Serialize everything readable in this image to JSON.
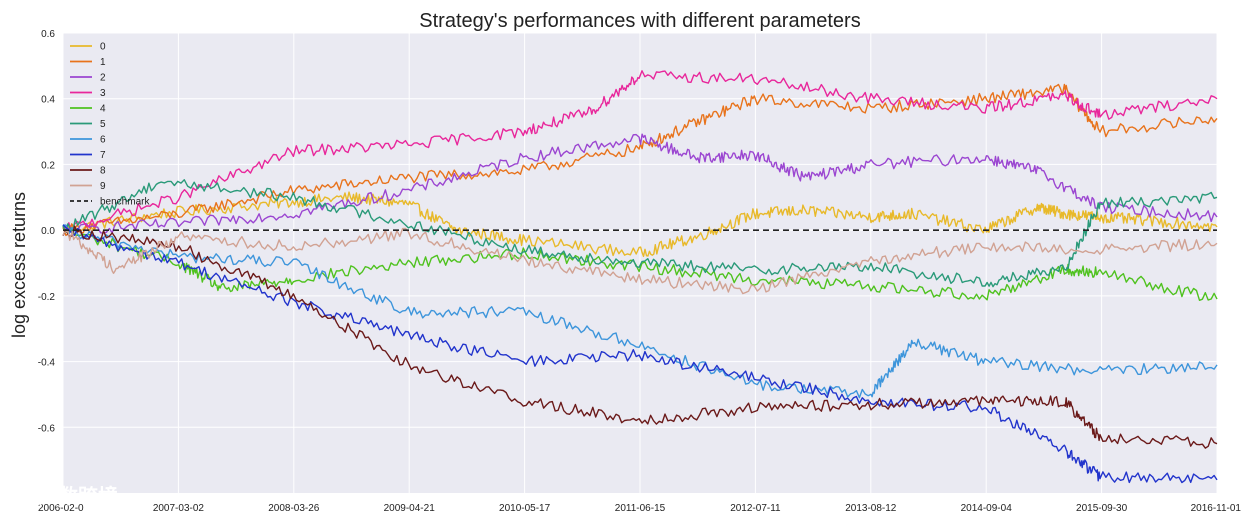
{
  "watermark": "大数跨境",
  "chart_data": {
    "type": "line",
    "title": "Strategy's performances with different parameters",
    "xlabel": "",
    "ylabel": "log excess returns",
    "ylim": [
      -0.8,
      0.6
    ],
    "yticks": [
      -0.6,
      -0.4,
      -0.2,
      0.0,
      0.2,
      0.4,
      0.6
    ],
    "ytick_labels": [
      "-0.6",
      "-0.4",
      "-0.2",
      "0.0",
      "0.2",
      "0.4",
      "0.6"
    ],
    "x_start": "2006-02-01",
    "x_end": "2016-11-01",
    "xtick_labels": [
      "2006-02-0",
      "2007-03-02",
      "2008-03-26",
      "2009-04-21",
      "2010-05-17",
      "2011-06-15",
      "2012-07-11",
      "2013-08-12",
      "2014-09-04",
      "2015-09-30",
      "2016-11-01"
    ],
    "grid": true,
    "legend_position": "top-left",
    "background": "#eaeaf2",
    "series": [
      {
        "name": "0",
        "color": "#e8b92a",
        "x": [
          "2006-02-01",
          "2007-01-01",
          "2008-01-01",
          "2008-10-01",
          "2009-04-21",
          "2009-10-01",
          "2010-05-17",
          "2011-06-15",
          "2012-01-01",
          "2012-07-11",
          "2013-01-01",
          "2013-08-12",
          "2014-01-01",
          "2014-09-04",
          "2015-03-01",
          "2015-06-01",
          "2015-09-30",
          "2016-03-01",
          "2016-11-01"
        ],
        "y": [
          0.0,
          0.05,
          0.08,
          0.1,
          0.08,
          0.0,
          -0.03,
          -0.07,
          -0.02,
          0.05,
          0.06,
          0.04,
          0.05,
          0.0,
          0.07,
          0.05,
          0.04,
          0.03,
          0.01
        ]
      },
      {
        "name": "1",
        "color": "#e8731c",
        "x": [
          "2006-02-01",
          "2007-03-02",
          "2008-03-26",
          "2009-04-21",
          "2010-05-17",
          "2011-06-15",
          "2012-01-01",
          "2012-07-11",
          "2013-08-12",
          "2014-09-04",
          "2015-06-01",
          "2015-09-30",
          "2016-11-01"
        ],
        "y": [
          0.0,
          0.05,
          0.12,
          0.16,
          0.18,
          0.25,
          0.33,
          0.4,
          0.37,
          0.4,
          0.43,
          0.3,
          0.34
        ]
      },
      {
        "name": "2",
        "color": "#9b46d1",
        "x": [
          "2006-02-01",
          "2007-03-02",
          "2008-03-26",
          "2009-04-21",
          "2010-05-17",
          "2011-06-15",
          "2012-01-01",
          "2012-07-11",
          "2013-01-01",
          "2013-08-12",
          "2014-09-04",
          "2015-03-01",
          "2015-09-30",
          "2016-11-01"
        ],
        "y": [
          0.0,
          0.02,
          0.05,
          0.12,
          0.22,
          0.28,
          0.22,
          0.23,
          0.16,
          0.2,
          0.22,
          0.18,
          0.07,
          0.04
        ]
      },
      {
        "name": "3",
        "color": "#e8279b",
        "x": [
          "2006-02-01",
          "2007-03-02",
          "2008-03-26",
          "2009-04-21",
          "2010-05-17",
          "2011-01-01",
          "2011-06-15",
          "2012-07-11",
          "2013-08-12",
          "2014-09-04",
          "2015-06-01",
          "2015-09-30",
          "2016-11-01"
        ],
        "y": [
          0.0,
          0.1,
          0.24,
          0.26,
          0.3,
          0.36,
          0.47,
          0.46,
          0.4,
          0.37,
          0.41,
          0.35,
          0.4
        ]
      },
      {
        "name": "4",
        "color": "#4fc21f",
        "x": [
          "2006-02-01",
          "2007-03-02",
          "2007-08-01",
          "2008-03-26",
          "2009-04-21",
          "2010-05-17",
          "2011-06-15",
          "2012-07-11",
          "2013-08-12",
          "2014-09-04",
          "2015-06-01",
          "2015-09-30",
          "2016-11-01"
        ],
        "y": [
          0.0,
          -0.1,
          -0.18,
          -0.15,
          -0.1,
          -0.07,
          -0.11,
          -0.15,
          -0.17,
          -0.2,
          -0.12,
          -0.13,
          -0.21
        ]
      },
      {
        "name": "5",
        "color": "#2a9a79",
        "x": [
          "2006-02-01",
          "2007-01-01",
          "2008-03-26",
          "2009-04-21",
          "2010-05-17",
          "2011-06-15",
          "2012-07-11",
          "2013-08-12",
          "2014-09-04",
          "2015-06-01",
          "2015-09-30",
          "2016-11-01"
        ],
        "y": [
          0.0,
          0.15,
          0.1,
          0.02,
          -0.06,
          -0.1,
          -0.12,
          -0.11,
          -0.16,
          -0.12,
          0.08,
          0.1
        ]
      },
      {
        "name": "6",
        "color": "#3d95db",
        "x": [
          "2006-02-01",
          "2007-03-02",
          "2008-03-26",
          "2009-04-21",
          "2010-05-17",
          "2011-06-15",
          "2012-07-11",
          "2013-08-12",
          "2014-01-01",
          "2014-09-04",
          "2015-09-30",
          "2016-11-01"
        ],
        "y": [
          0.0,
          -0.08,
          -0.1,
          -0.25,
          -0.25,
          -0.35,
          -0.47,
          -0.5,
          -0.34,
          -0.4,
          -0.43,
          -0.41
        ]
      },
      {
        "name": "7",
        "color": "#2234cc",
        "x": [
          "2006-02-01",
          "2007-03-02",
          "2008-03-26",
          "2009-04-21",
          "2010-05-17",
          "2011-06-15",
          "2012-07-11",
          "2013-08-12",
          "2014-09-04",
          "2015-06-01",
          "2015-09-30",
          "2016-11-01"
        ],
        "y": [
          0.0,
          -0.1,
          -0.22,
          -0.32,
          -0.4,
          -0.38,
          -0.45,
          -0.52,
          -0.54,
          -0.67,
          -0.75,
          -0.76
        ]
      },
      {
        "name": "8",
        "color": "#6b1a1a",
        "x": [
          "2006-02-01",
          "2007-03-02",
          "2008-03-26",
          "2009-04-21",
          "2010-05-17",
          "2011-06-15",
          "2012-07-11",
          "2013-08-12",
          "2014-09-04",
          "2015-06-01",
          "2015-09-30",
          "2016-11-01"
        ],
        "y": [
          0.0,
          -0.05,
          -0.2,
          -0.41,
          -0.52,
          -0.58,
          -0.54,
          -0.53,
          -0.52,
          -0.52,
          -0.63,
          -0.65
        ]
      },
      {
        "name": "9",
        "color": "#d1a293",
        "x": [
          "2006-02-01",
          "2006-08-01",
          "2007-03-02",
          "2008-03-26",
          "2009-04-21",
          "2010-05-17",
          "2011-06-15",
          "2012-07-11",
          "2013-08-12",
          "2014-09-04",
          "2015-09-30",
          "2016-11-01"
        ],
        "y": [
          0.0,
          -0.12,
          -0.02,
          -0.05,
          -0.01,
          -0.09,
          -0.15,
          -0.18,
          -0.09,
          -0.05,
          -0.06,
          -0.04
        ]
      }
    ],
    "benchmark": {
      "name": "benchmark",
      "value": 0.0,
      "color": "#222222",
      "style": "dashed"
    }
  }
}
